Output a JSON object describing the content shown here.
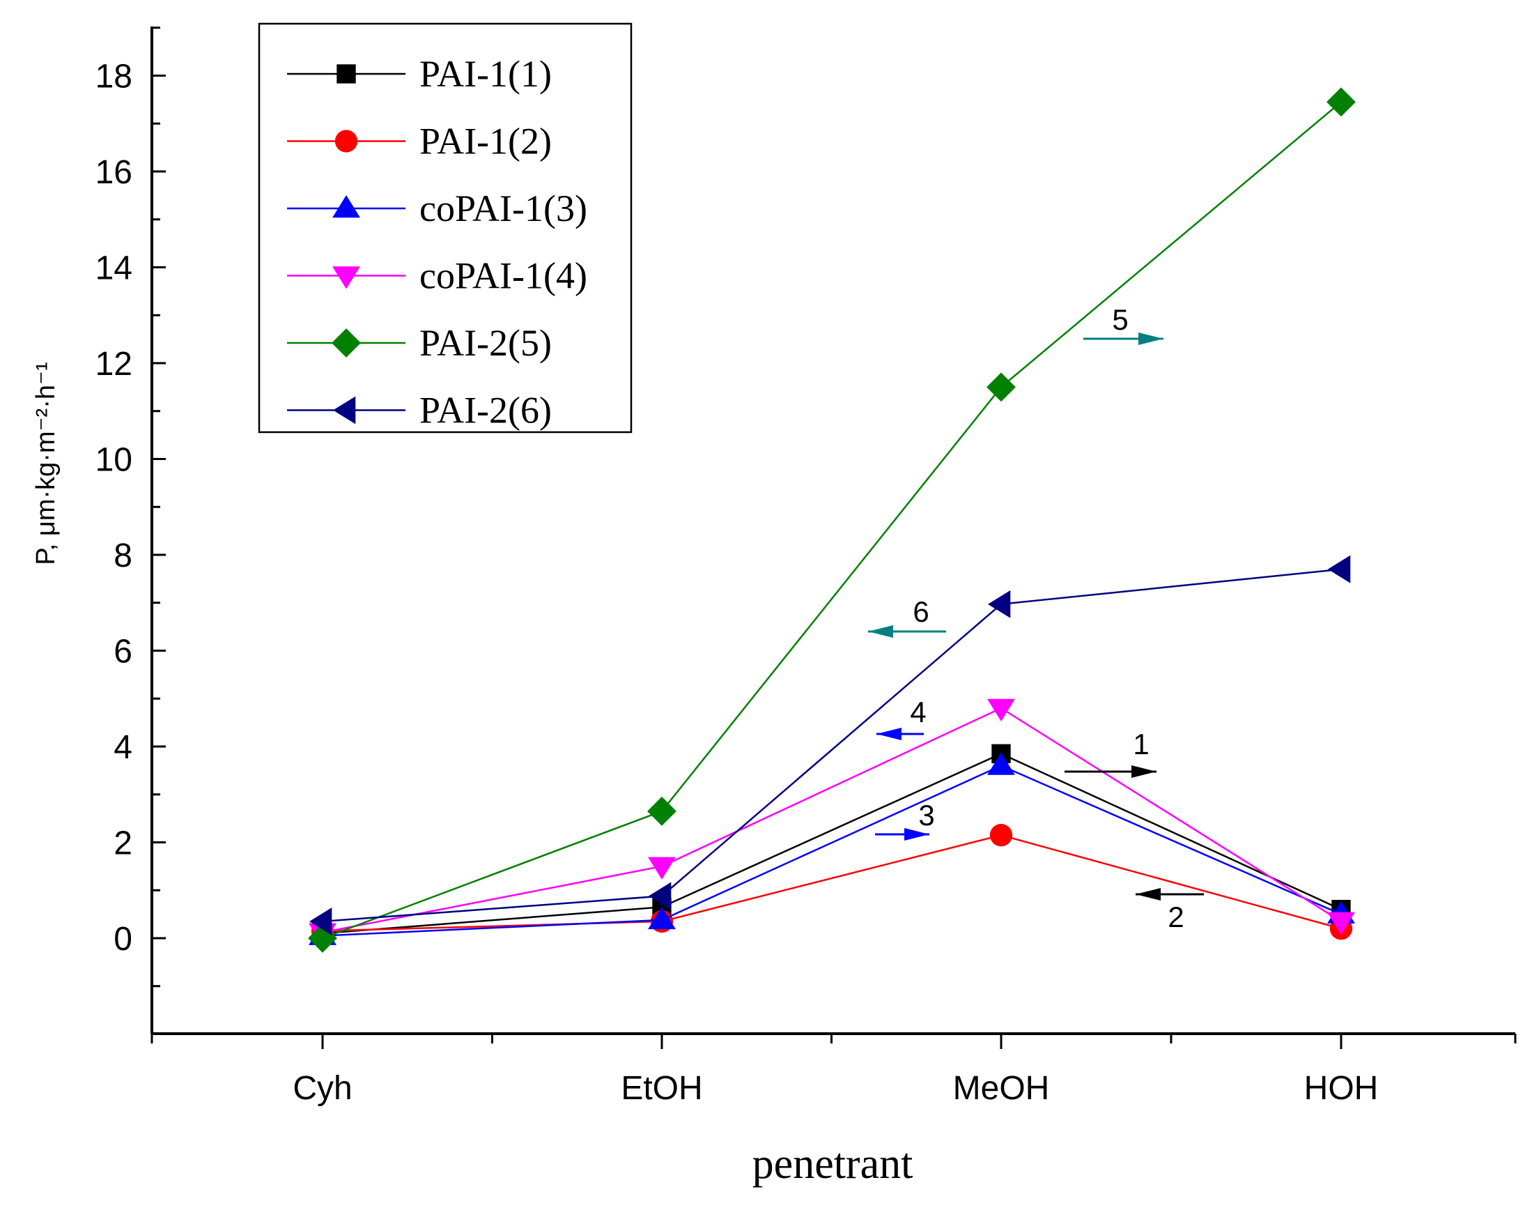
{
  "chart_data": {
    "type": "line",
    "title": "",
    "xlabel": "penetrant",
    "ylabel": "P, μm·kg·m⁻²·h⁻¹",
    "categories": [
      "Cyh",
      "EtOH",
      "MeOH",
      "HOH"
    ],
    "ylim": [
      -2,
      19
    ],
    "yticks": [
      0,
      2,
      4,
      6,
      8,
      10,
      12,
      14,
      16,
      18
    ],
    "series": [
      {
        "name": "PAI-1(1)",
        "marker": "square",
        "color": "#000000",
        "values": [
          0.1,
          0.65,
          3.85,
          0.6
        ]
      },
      {
        "name": "PAI-1(2)",
        "marker": "circle",
        "color": "#ff0000",
        "values": [
          0.15,
          0.35,
          2.15,
          0.2
        ]
      },
      {
        "name": "coPAI-1(3)",
        "marker": "triangle-up",
        "color": "#0000ff",
        "values": [
          0.05,
          0.38,
          3.6,
          0.5
        ]
      },
      {
        "name": "coPAI-1(4)",
        "marker": "triangle-down",
        "color": "#ff00ff",
        "values": [
          0.12,
          1.5,
          4.8,
          0.35
        ]
      },
      {
        "name": "PAI-2(5)",
        "marker": "diamond",
        "color": "#008000",
        "values": [
          0.0,
          2.65,
          11.5,
          17.45
        ]
      },
      {
        "name": "PAI-2(6)",
        "marker": "triangle-left",
        "color": "#000080",
        "values": [
          0.35,
          0.88,
          6.97,
          7.7
        ]
      }
    ],
    "annotations": [
      {
        "text": "1",
        "series": 0,
        "arrow": "right",
        "color": "#000000"
      },
      {
        "text": "2",
        "series": 1,
        "arrow": "left",
        "color": "#000000"
      },
      {
        "text": "3",
        "series": 2,
        "arrow": "right",
        "color": "#0000ff"
      },
      {
        "text": "4",
        "series": 3,
        "arrow": "left",
        "color": "#0000ff"
      },
      {
        "text": "5",
        "series": 4,
        "arrow": "right",
        "color": "#008080"
      },
      {
        "text": "6",
        "series": 5,
        "arrow": "left",
        "color": "#008080"
      }
    ],
    "legend": "top-left"
  }
}
